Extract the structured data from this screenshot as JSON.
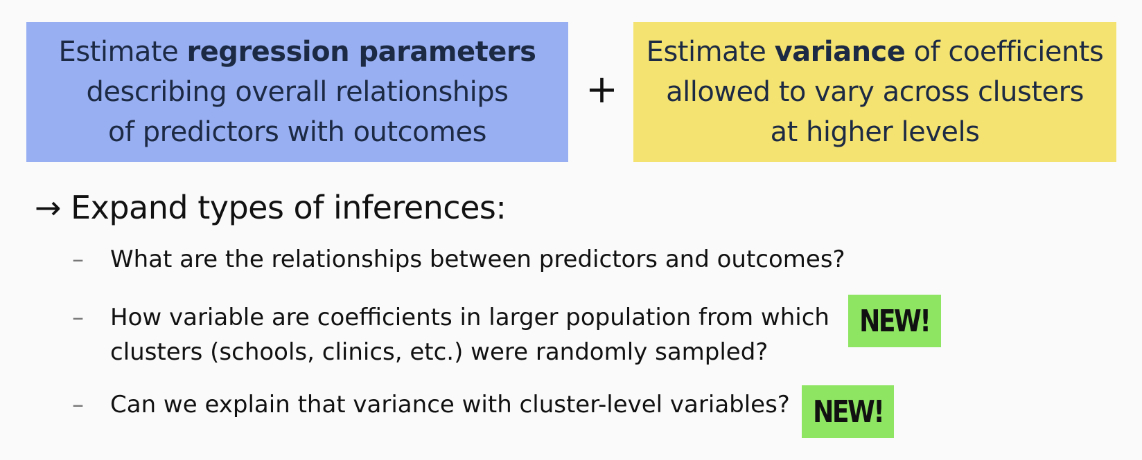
{
  "boxes": {
    "left": {
      "line1_pre": "Estimate ",
      "line1_bold": "regression parameters",
      "line2": "describing overall relationships",
      "line3": "of predictors with outcomes",
      "color": "#98aff2"
    },
    "plus": "+",
    "right": {
      "line1_pre": "Estimate ",
      "line1_bold": "variance",
      "line1_post": " of coefficients",
      "line2": "allowed to vary across clusters",
      "line3": "at higher levels",
      "color": "#f4e371"
    }
  },
  "heading": {
    "arrow": "→",
    "text": "Expand types of inferences:"
  },
  "items": [
    {
      "dash": "–",
      "line1": "What are the relationships between predictors and outcomes?"
    },
    {
      "dash": "–",
      "line1": "How variable are coefficients in larger population from which",
      "line2": "clusters (schools, clinics, etc.) were randomly sampled?",
      "badge": "NEW!"
    },
    {
      "dash": "–",
      "line1": "Can we explain that variance with cluster-level variables?",
      "badge": "NEW!"
    }
  ],
  "badge_color": "#8ee562"
}
